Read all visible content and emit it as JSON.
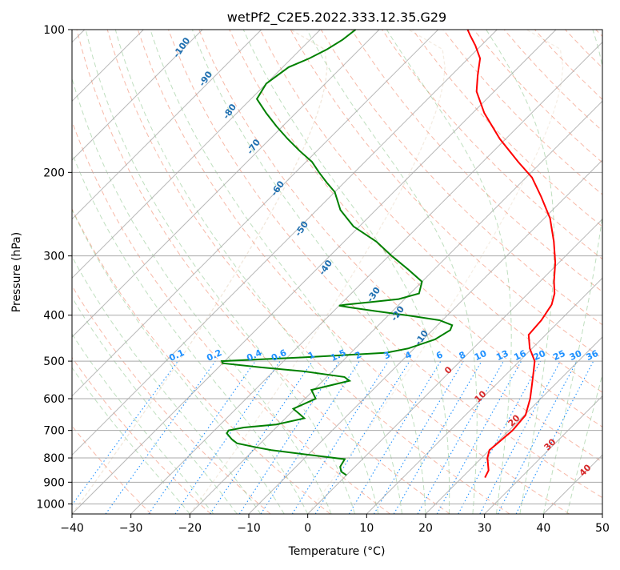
{
  "chart_data": {
    "type": "line",
    "title": "wetPf2_C2E5.2022.333.12.35.G29",
    "xlabel": "Temperature (°C)",
    "ylabel": "Pressure (hPa)",
    "xlim": [
      -40,
      50
    ],
    "ylim": [
      1050,
      100
    ],
    "y_scale": "log",
    "skew": true,
    "x_ticks": [
      "−40",
      "−30",
      "−20",
      "−10",
      "0",
      "10",
      "20",
      "30",
      "40",
      "50"
    ],
    "y_ticks": [
      "100",
      "200",
      "300",
      "400",
      "500",
      "600",
      "700",
      "800",
      "900",
      "1000"
    ],
    "grid": true,
    "series": [
      {
        "color": "#ff0000",
        "p": [
          880,
          850,
          800,
          770,
          750,
          700,
          650,
          600,
          560,
          530,
          500,
          470,
          440,
          410,
          380,
          360,
          340,
          310,
          280,
          250,
          225,
          205,
          190,
          170,
          150,
          135,
          125,
          115,
          108,
          103,
          100
        ],
        "t": [
          23.9,
          23.3,
          21.0,
          20.0,
          20.2,
          20.6,
          20.2,
          18.2,
          16.1,
          14.4,
          12.6,
          9.6,
          7.1,
          6.8,
          5.9,
          4.5,
          2.4,
          -0.6,
          -4.4,
          -9.0,
          -14.2,
          -19.0,
          -24.0,
          -31.0,
          -38.0,
          -43.0,
          -45.5,
          -48.0,
          -51.0,
          -53.5,
          -55.0
        ]
      },
      {
        "color": "#008000",
        "p": [
          870,
          855,
          835,
          805,
          790,
          770,
          760,
          745,
          730,
          710,
          700,
          690,
          680,
          660,
          645,
          630,
          600,
          575,
          550,
          540,
          525,
          515,
          505,
          500,
          490,
          480,
          470,
          450,
          430,
          420,
          410,
          400,
          392,
          385,
          382,
          380,
          375,
          370,
          360,
          340,
          320,
          300,
          280,
          260,
          240,
          220,
          210,
          200,
          190,
          180,
          170,
          160,
          150,
          140,
          130,
          120,
          115,
          110,
          105,
          100
        ],
        "t": [
          0.0,
          -1.5,
          -2.5,
          -3.0,
          -9.0,
          -17.0,
          -20.0,
          -24.0,
          -25.6,
          -27.4,
          -27.6,
          -25.5,
          -20.5,
          -16.8,
          -18.5,
          -20.3,
          -18.2,
          -20.4,
          -15.5,
          -17.0,
          -25.0,
          -33.0,
          -40.0,
          -40.5,
          -26.0,
          -14.0,
          -11.0,
          -8.0,
          -7.0,
          -7.5,
          -10.5,
          -17.0,
          -23.0,
          -28.0,
          -30.0,
          -29.0,
          -25.0,
          -21.0,
          -18.5,
          -20.0,
          -24.5,
          -29.5,
          -34.5,
          -41.0,
          -46.0,
          -50.0,
          -53.0,
          -56.0,
          -59.0,
          -63.0,
          -67.0,
          -71.0,
          -75.0,
          -79.0,
          -80.0,
          -79.0,
          -77.0,
          -75.5,
          -74.5,
          -74.0
        ]
      }
    ],
    "dry_adiabat_labels": [
      "-100",
      "-90",
      "-80",
      "-70",
      "-60",
      "-50",
      "-40",
      "-30",
      "-20",
      "-10"
    ],
    "moist_adiabat_labels": [
      "0",
      "10",
      "20",
      "30",
      "40"
    ],
    "mixing_ratio_labels": [
      "0.1",
      "0.2",
      "0.4",
      "0.6",
      "1",
      "1.5",
      "2",
      "3",
      "4",
      "6",
      "8",
      "10",
      "13",
      "16",
      "20",
      "25",
      "30",
      "36"
    ],
    "colors": {
      "temperature": "#ff0000",
      "dewpoint": "#008000",
      "isotherm": "#a0a0a0",
      "dry_adiabat": "#f08060",
      "moist_adiabat": "#80c080",
      "mixing_ratio": "#1e90ff",
      "dry_label": "#1f6fb0",
      "moist_label": "#d62728",
      "ring": "#c8a070"
    }
  }
}
